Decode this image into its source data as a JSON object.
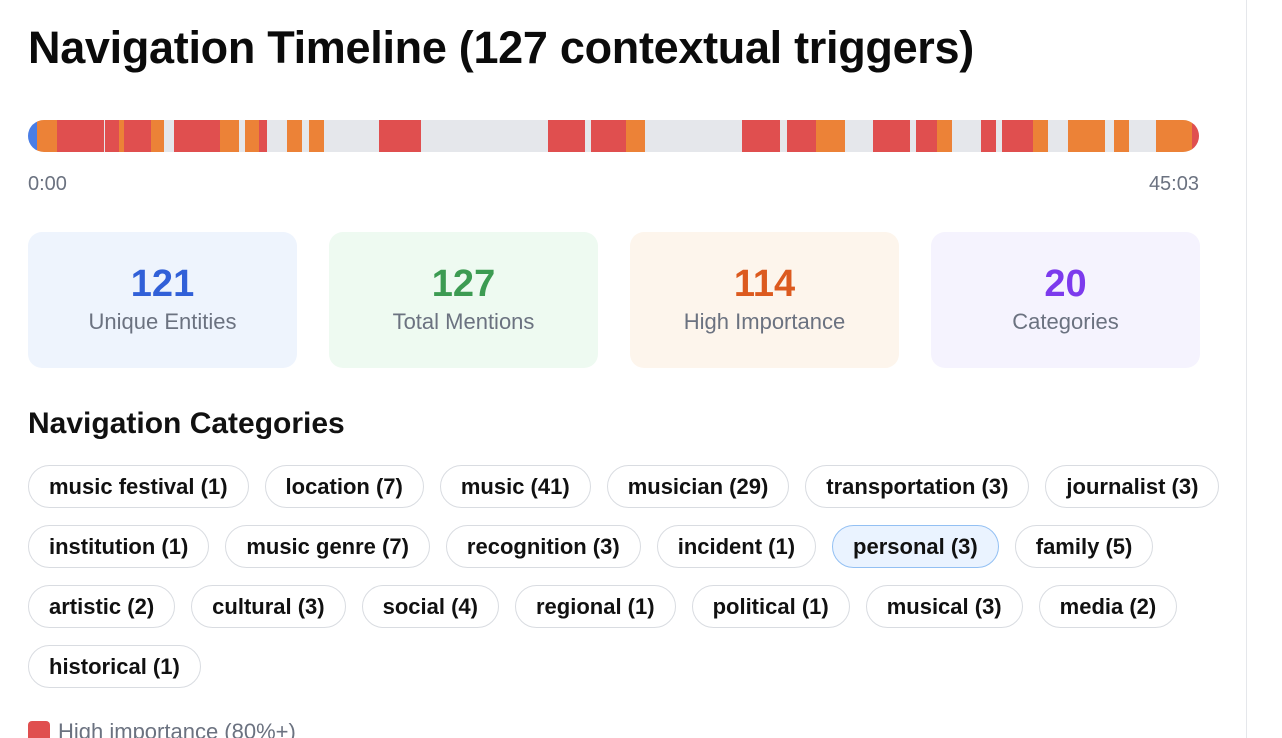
{
  "title": "Navigation Timeline (127 contextual triggers)",
  "timeline": {
    "start_label": "0:00",
    "end_label": "45:03",
    "colors": {
      "high": "#e04f4f",
      "medium": "#ec8237",
      "low": "#4a7ee6",
      "track": "#e5e7eb"
    },
    "segments": [
      {
        "start": 0.0,
        "end": 0.008,
        "level": "low"
      },
      {
        "start": 0.008,
        "end": 0.025,
        "level": "medium"
      },
      {
        "start": 0.025,
        "end": 0.065,
        "level": "high"
      },
      {
        "start": 0.066,
        "end": 0.078,
        "level": "high"
      },
      {
        "start": 0.078,
        "end": 0.082,
        "level": "medium"
      },
      {
        "start": 0.082,
        "end": 0.105,
        "level": "high"
      },
      {
        "start": 0.105,
        "end": 0.116,
        "level": "medium"
      },
      {
        "start": 0.125,
        "end": 0.164,
        "level": "high"
      },
      {
        "start": 0.164,
        "end": 0.18,
        "level": "medium"
      },
      {
        "start": 0.185,
        "end": 0.197,
        "level": "medium"
      },
      {
        "start": 0.197,
        "end": 0.204,
        "level": "high"
      },
      {
        "start": 0.221,
        "end": 0.234,
        "level": "medium"
      },
      {
        "start": 0.24,
        "end": 0.253,
        "level": "medium"
      },
      {
        "start": 0.3,
        "end": 0.336,
        "level": "high"
      },
      {
        "start": 0.444,
        "end": 0.476,
        "level": "high"
      },
      {
        "start": 0.481,
        "end": 0.511,
        "level": "high"
      },
      {
        "start": 0.511,
        "end": 0.527,
        "level": "medium"
      },
      {
        "start": 0.61,
        "end": 0.642,
        "level": "high"
      },
      {
        "start": 0.648,
        "end": 0.673,
        "level": "high"
      },
      {
        "start": 0.673,
        "end": 0.698,
        "level": "medium"
      },
      {
        "start": 0.722,
        "end": 0.753,
        "level": "high"
      },
      {
        "start": 0.758,
        "end": 0.776,
        "level": "high"
      },
      {
        "start": 0.776,
        "end": 0.789,
        "level": "medium"
      },
      {
        "start": 0.814,
        "end": 0.827,
        "level": "high"
      },
      {
        "start": 0.832,
        "end": 0.858,
        "level": "high"
      },
      {
        "start": 0.858,
        "end": 0.871,
        "level": "medium"
      },
      {
        "start": 0.888,
        "end": 0.92,
        "level": "medium"
      },
      {
        "start": 0.927,
        "end": 0.94,
        "level": "medium"
      },
      {
        "start": 0.963,
        "end": 0.994,
        "level": "medium"
      },
      {
        "start": 0.994,
        "end": 1.0,
        "level": "high"
      }
    ]
  },
  "stats": [
    {
      "value": "121",
      "label": "Unique Entities",
      "color": "#3160d8",
      "bg": "#eef4fd"
    },
    {
      "value": "127",
      "label": "Total Mentions",
      "color": "#3c9b52",
      "bg": "#eefaf1"
    },
    {
      "value": "114",
      "label": "High Importance",
      "color": "#dc5a1f",
      "bg": "#fdf5ec"
    },
    {
      "value": "20",
      "label": "Categories",
      "color": "#7c3aed",
      "bg": "#f5f3fe"
    }
  ],
  "categories_title": "Navigation Categories",
  "categories": [
    {
      "label": "music festival (1)",
      "selected": false
    },
    {
      "label": "location (7)",
      "selected": false
    },
    {
      "label": "music (41)",
      "selected": false
    },
    {
      "label": "musician (29)",
      "selected": false
    },
    {
      "label": "transportation (3)",
      "selected": false
    },
    {
      "label": "journalist (3)",
      "selected": false
    },
    {
      "label": "institution (1)",
      "selected": false
    },
    {
      "label": "music genre (7)",
      "selected": false
    },
    {
      "label": "recognition (3)",
      "selected": false
    },
    {
      "label": "incident (1)",
      "selected": false
    },
    {
      "label": "personal (3)",
      "selected": true
    },
    {
      "label": "family (5)",
      "selected": false
    },
    {
      "label": "artistic (2)",
      "selected": false
    },
    {
      "label": "cultural (3)",
      "selected": false
    },
    {
      "label": "social (4)",
      "selected": false
    },
    {
      "label": "regional (1)",
      "selected": false
    },
    {
      "label": "political (1)",
      "selected": false
    },
    {
      "label": "musical (3)",
      "selected": false
    },
    {
      "label": "media (2)",
      "selected": false
    },
    {
      "label": "historical (1)",
      "selected": false
    }
  ],
  "legend": [
    {
      "label": "High importance (80%+)",
      "color": "#e04f4f"
    }
  ]
}
